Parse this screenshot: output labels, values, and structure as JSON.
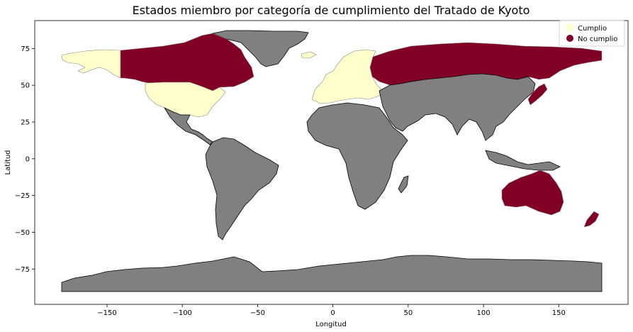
{
  "chart_data": {
    "type": "choropleth",
    "title": "Estados miembro por categoría de cumplimiento del Tratado de Kyoto",
    "xlabel": "Longitud",
    "ylabel": "Latitud",
    "xlim": [
      -198,
      196
    ],
    "ylim": [
      -99,
      94
    ],
    "xticks": [
      -150,
      -100,
      -50,
      0,
      50,
      100,
      150
    ],
    "yticks": [
      75,
      50,
      25,
      0,
      -25,
      -50,
      -75
    ],
    "grid": false,
    "legend_position": "top-right",
    "legend": [
      {
        "label": "Cumplio",
        "color": "#ffffcc"
      },
      {
        "label": "No cumplio",
        "color": "#800026"
      }
    ],
    "colors": {
      "non_member": "#808080",
      "cumplio": "#ffffcc",
      "no_cumplio": "#800026"
    }
  }
}
